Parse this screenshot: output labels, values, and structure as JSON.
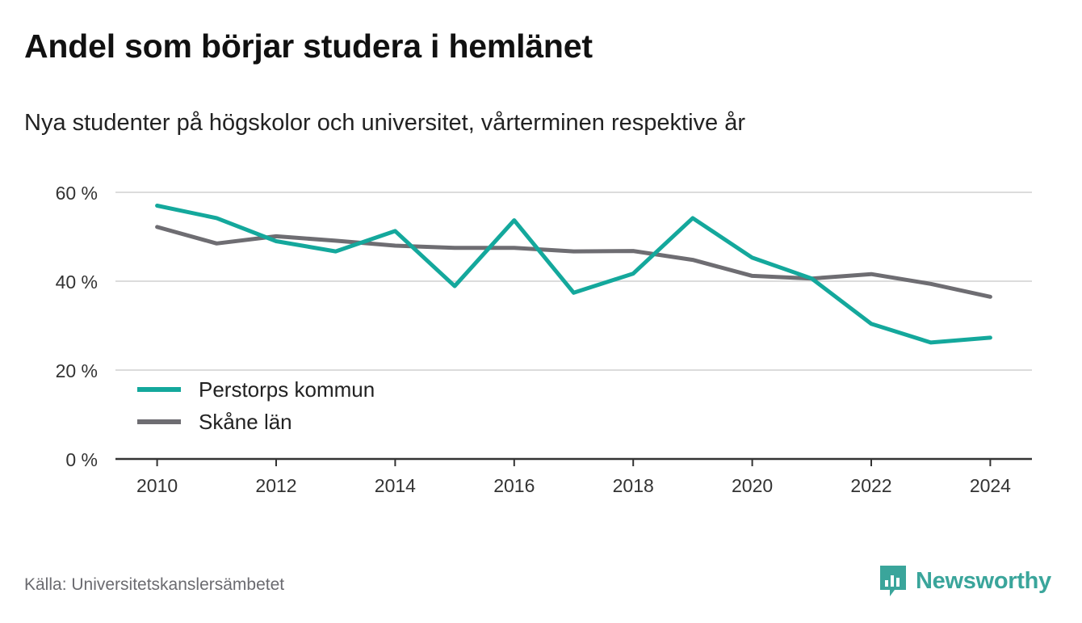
{
  "title": "Andel som börjar studera i hemlänet",
  "subtitle": "Nya studenter på högskolor och universitet, vårterminen respektive år",
  "source": "Källa: Universitetskanslersämbetet",
  "brand": {
    "name": "Newsworthy",
    "icon": "newsworthy-logo-icon",
    "color": "#3aa59b"
  },
  "chart_data": {
    "type": "line",
    "x": [
      2010,
      2011,
      2012,
      2013,
      2014,
      2015,
      2016,
      2017,
      2018,
      2019,
      2020,
      2021,
      2022,
      2023,
      2024
    ],
    "series": [
      {
        "name": "Perstorps kommun",
        "color": "#14a89c",
        "values": [
          57.0,
          54.2,
          49.0,
          46.7,
          51.3,
          38.9,
          53.7,
          37.4,
          41.7,
          54.2,
          45.3,
          40.6,
          30.4,
          26.2,
          27.3
        ]
      },
      {
        "name": "Skåne län",
        "color": "#6e6d72",
        "values": [
          52.2,
          48.5,
          50.1,
          49.1,
          48.0,
          47.5,
          47.5,
          46.7,
          46.8,
          44.8,
          41.2,
          40.6,
          41.6,
          39.4,
          36.5
        ]
      }
    ],
    "ylim": [
      0,
      60
    ],
    "yticks": [
      0,
      20,
      40,
      60
    ],
    "ytick_labels": [
      "0 %",
      "20 %",
      "40 %",
      "60 %"
    ],
    "xticks": [
      2010,
      2012,
      2014,
      2016,
      2018,
      2020,
      2022,
      2024
    ],
    "xtick_labels": [
      "2010",
      "2012",
      "2014",
      "2016",
      "2018",
      "2020",
      "2022",
      "2024"
    ],
    "xlim": [
      2009.3,
      2024.7
    ],
    "grid": true,
    "legend": "bottom-left"
  }
}
